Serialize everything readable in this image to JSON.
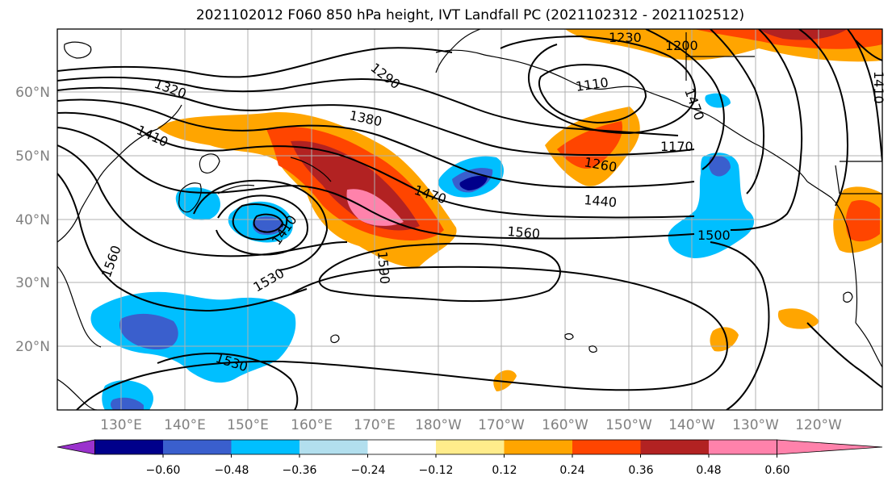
{
  "title": "2021102012 F060 850 hPa height, IVT Landfall PC (2021102312 - 2021102512)",
  "lat_labels": [
    "60°N",
    "50°N",
    "40°N",
    "30°N",
    "20°N"
  ],
  "lon_labels": [
    "130°E",
    "140°E",
    "150°E",
    "160°E",
    "170°E",
    "180°W",
    "170°W",
    "160°W",
    "150°W",
    "140°W",
    "130°W",
    "120°W"
  ],
  "contour_labels": [
    "1320",
    "1410",
    "1290",
    "1230",
    "1200",
    "1110",
    "1170",
    "1380",
    "1260",
    "1470",
    "1440",
    "1410",
    "1560",
    "1500",
    "1590",
    "1560",
    "1530",
    "1530",
    "1410",
    "1470"
  ],
  "colorbar": {
    "ticks": [
      "−0.60",
      "−0.48",
      "−0.36",
      "−0.24",
      "−0.12",
      "0.12",
      "0.24",
      "0.36",
      "0.48",
      "0.60"
    ],
    "colors": [
      "#9a32cd",
      "#00008b",
      "#3a5fcd",
      "#00bfff",
      "#b2dfee",
      "#ffffff",
      "#ffec8b",
      "#ffa500",
      "#ff4500",
      "#b22222",
      "#ff82ab",
      "#ff82ab"
    ]
  }
}
